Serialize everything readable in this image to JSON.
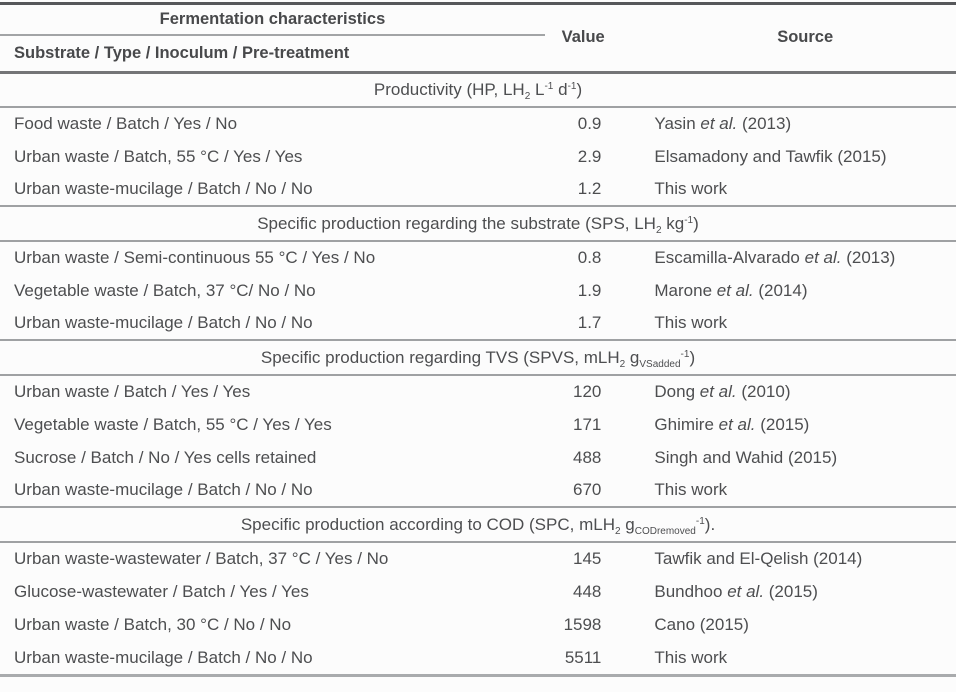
{
  "table": {
    "header": {
      "group_title": "Fermentation characteristics",
      "col1": "Substrate / Type / Inoculum / Pre-treatment",
      "col2": "Value",
      "col3": "Source"
    },
    "sections": [
      {
        "title_segments": [
          {
            "t": "text",
            "v": "Productivity (HP, LH"
          },
          {
            "t": "sub",
            "v": "2"
          },
          {
            "t": "text",
            "v": " L"
          },
          {
            "t": "sup",
            "v": "-1"
          },
          {
            "t": "text",
            "v": " d"
          },
          {
            "t": "sup",
            "v": "-1"
          },
          {
            "t": "text",
            "v": ")"
          }
        ],
        "rows": [
          {
            "substrate": "Food waste / Batch / Yes / No",
            "value": "0.9",
            "source_segments": [
              {
                "t": "text",
                "v": "Yasin "
              },
              {
                "t": "i",
                "v": "et al."
              },
              {
                "t": "text",
                "v": " (2013)"
              }
            ]
          },
          {
            "substrate": "Urban waste / Batch, 55 °C / Yes / Yes",
            "value": "2.9",
            "source_segments": [
              {
                "t": "text",
                "v": "Elsamadony and Tawfik (2015)"
              }
            ]
          },
          {
            "substrate": "Urban waste-mucilage / Batch / No / No",
            "value": "1.2",
            "source_segments": [
              {
                "t": "text",
                "v": "This work"
              }
            ]
          }
        ]
      },
      {
        "title_segments": [
          {
            "t": "text",
            "v": "Specific production regarding the substrate (SPS, LH"
          },
          {
            "t": "sub",
            "v": "2"
          },
          {
            "t": "text",
            "v": " kg"
          },
          {
            "t": "sup",
            "v": "-1"
          },
          {
            "t": "text",
            "v": ")"
          }
        ],
        "rows": [
          {
            "substrate": "Urban waste / Semi-continuous 55 °C / Yes / No",
            "value": "0.8",
            "source_segments": [
              {
                "t": "text",
                "v": "Escamilla-Alvarado "
              },
              {
                "t": "i",
                "v": "et al."
              },
              {
                "t": "text",
                "v": " (2013)"
              }
            ]
          },
          {
            "substrate": "Vegetable waste / Batch, 37 °C/ No / No",
            "value": "1.9",
            "source_segments": [
              {
                "t": "text",
                "v": "Marone "
              },
              {
                "t": "i",
                "v": "et al."
              },
              {
                "t": "text",
                "v": " (2014)"
              }
            ]
          },
          {
            "substrate": "Urban waste-mucilage / Batch / No / No",
            "value": "1.7",
            "source_segments": [
              {
                "t": "text",
                "v": "This work"
              }
            ]
          }
        ]
      },
      {
        "title_segments": [
          {
            "t": "text",
            "v": "Specific production regarding TVS (SPVS, mLH"
          },
          {
            "t": "sub",
            "v": "2"
          },
          {
            "t": "text",
            "v": " g"
          },
          {
            "t": "sub",
            "v": "VSadded"
          },
          {
            "t": "sup",
            "v": "-1"
          },
          {
            "t": "text",
            "v": ")"
          }
        ],
        "rows": [
          {
            "substrate": "Urban waste / Batch / Yes / Yes",
            "value": "120",
            "source_segments": [
              {
                "t": "text",
                "v": "Dong "
              },
              {
                "t": "i",
                "v": "et al."
              },
              {
                "t": "text",
                "v": " (2010)"
              }
            ]
          },
          {
            "substrate": "Vegetable waste / Batch, 55 °C / Yes / Yes",
            "value": "171",
            "source_segments": [
              {
                "t": "text",
                "v": "Ghimire "
              },
              {
                "t": "i",
                "v": "et al."
              },
              {
                "t": "text",
                "v": " (2015)"
              }
            ]
          },
          {
            "substrate": "Sucrose / Batch / No / Yes cells retained",
            "value": "488",
            "source_segments": [
              {
                "t": "text",
                "v": "Singh and Wahid (2015)"
              }
            ]
          },
          {
            "substrate": "Urban waste-mucilage / Batch / No / No",
            "value": "670",
            "source_segments": [
              {
                "t": "text",
                "v": "This work"
              }
            ]
          }
        ]
      },
      {
        "title_segments": [
          {
            "t": "text",
            "v": "Specific production according to COD (SPC, mLH"
          },
          {
            "t": "sub",
            "v": "2"
          },
          {
            "t": "text",
            "v": " g"
          },
          {
            "t": "sub",
            "v": "CODremoved"
          },
          {
            "t": "sup",
            "v": "-1"
          },
          {
            "t": "text",
            "v": ")."
          }
        ],
        "rows": [
          {
            "substrate": "Urban waste-wastewater / Batch, 37 °C / Yes / No",
            "value": "145",
            "source_segments": [
              {
                "t": "text",
                "v": "Tawfik and El-Qelish (2014)"
              }
            ]
          },
          {
            "substrate": "Glucose-wastewater / Batch / Yes / Yes",
            "value": "448",
            "source_segments": [
              {
                "t": "text",
                "v": "Bundhoo "
              },
              {
                "t": "i",
                "v": "et al."
              },
              {
                "t": "text",
                "v": " (2015)"
              }
            ]
          },
          {
            "substrate": "Urban waste / Batch, 30 °C / No / No",
            "value": "1598",
            "source_segments": [
              {
                "t": "text",
                "v": "Cano (2015)"
              }
            ]
          },
          {
            "substrate": "Urban waste-mucilage / Batch / No / No",
            "value": "5511",
            "source_segments": [
              {
                "t": "text",
                "v": "This work"
              }
            ]
          }
        ]
      }
    ]
  }
}
